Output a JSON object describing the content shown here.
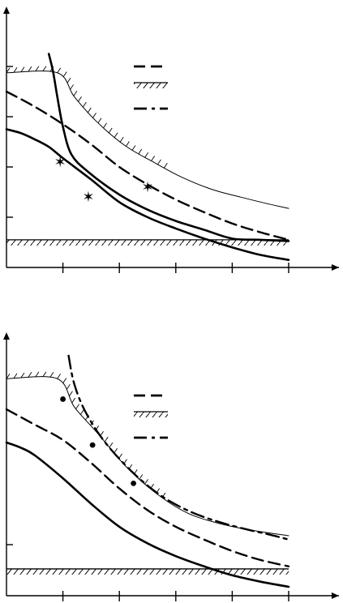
{
  "colors": {
    "ink": "#000000",
    "background": "#ffffff"
  },
  "chart_data": [
    {
      "type": "line",
      "panel": "top",
      "xlim": [
        0,
        10
      ],
      "ylim": [
        0,
        10
      ],
      "x_ticks": [
        2,
        4,
        6,
        8,
        10
      ],
      "y_ticks": [
        2,
        4,
        6,
        8
      ],
      "grid": false,
      "legend_position": "top-right",
      "legend_entries": [
        {
          "style": "dashed",
          "label": ""
        },
        {
          "style": "hatched",
          "label": ""
        },
        {
          "style": "dash-dot",
          "label": ""
        }
      ],
      "series": [
        {
          "style": "solid-thin",
          "points": [
            [
              0,
              7.75
            ],
            [
              1.8,
              7.75
            ],
            [
              2.4,
              6.8
            ],
            [
              3.2,
              5.8
            ],
            [
              4.2,
              4.85
            ],
            [
              5.2,
              4.2
            ],
            [
              6.2,
              3.6
            ],
            [
              7.3,
              3.1
            ],
            [
              8.3,
              2.8
            ],
            [
              9.2,
              2.55
            ],
            [
              10,
              2.35
            ]
          ]
        },
        {
          "style": "solid-thick",
          "points": [
            [
              1.5,
              8.5
            ],
            [
              1.65,
              7.8
            ],
            [
              1.8,
              6.8
            ],
            [
              2.0,
              5.6
            ],
            [
              2.3,
              4.5
            ],
            [
              2.9,
              3.8
            ],
            [
              4.0,
              2.9
            ],
            [
              5.0,
              2.3
            ],
            [
              6.0,
              1.85
            ],
            [
              7.0,
              1.5
            ],
            [
              8.0,
              1.15
            ],
            [
              9.0,
              1.1
            ],
            [
              10,
              1.05
            ]
          ]
        },
        {
          "style": "dashed",
          "points": [
            [
              0,
              7.0
            ],
            [
              1.0,
              6.4
            ],
            [
              2.0,
              5.7
            ],
            [
              3.0,
              4.9
            ],
            [
              4.0,
              4.0
            ],
            [
              5.0,
              3.3
            ],
            [
              6.0,
              2.7
            ],
            [
              7.0,
              2.2
            ],
            [
              8.0,
              1.75
            ],
            [
              9.0,
              1.4
            ],
            [
              10,
              1.1
            ]
          ]
        },
        {
          "style": "solid-thick",
          "points": [
            [
              0,
              5.5
            ],
            [
              0.5,
              5.35
            ],
            [
              1.0,
              5.1
            ],
            [
              1.5,
              4.8
            ],
            [
              2.0,
              4.35
            ],
            [
              3.0,
              3.5
            ],
            [
              4.0,
              2.6
            ],
            [
              5.0,
              2.0
            ],
            [
              6.0,
              1.55
            ],
            [
              7.0,
              1.15
            ],
            [
              8.0,
              0.8
            ],
            [
              9.0,
              0.5
            ],
            [
              10,
              0.3
            ]
          ]
        },
        {
          "style": "hatched-line",
          "points": [
            [
              0,
              1.1
            ],
            [
              10,
              1.1
            ]
          ]
        }
      ],
      "markers": [
        {
          "shape": "star",
          "x": 1.9,
          "y": 4.2
        },
        {
          "shape": "star",
          "x": 2.9,
          "y": 2.8
        },
        {
          "shape": "star",
          "x": 5.0,
          "y": 3.2
        }
      ]
    },
    {
      "type": "line",
      "panel": "bottom",
      "xlim": [
        0,
        10
      ],
      "ylim": [
        0,
        10
      ],
      "x_ticks": [
        2,
        4,
        6,
        8,
        10
      ],
      "y_ticks": [
        2
      ],
      "grid": false,
      "legend_position": "top-right",
      "legend_entries": [
        {
          "style": "dashed",
          "label": ""
        },
        {
          "style": "hatched",
          "label": ""
        },
        {
          "style": "dash-dot",
          "label": ""
        }
      ],
      "series": [
        {
          "style": "solid-thin",
          "points": [
            [
              0,
              8.5
            ],
            [
              1.8,
              8.5
            ],
            [
              2.4,
              7.4
            ],
            [
              3.2,
              6.4
            ],
            [
              4.2,
              5.1
            ],
            [
              5.2,
              4.1
            ],
            [
              6.3,
              3.3
            ],
            [
              7.3,
              2.9
            ],
            [
              8.5,
              2.6
            ],
            [
              10,
              2.35
            ]
          ]
        },
        {
          "style": "dash-dot",
          "points": [
            [
              2.2,
              9.4
            ],
            [
              2.4,
              8.3
            ],
            [
              2.8,
              7.2
            ],
            [
              3.5,
              6.0
            ],
            [
              4.5,
              4.8
            ],
            [
              5.5,
              3.9
            ],
            [
              6.5,
              3.3
            ],
            [
              7.5,
              2.9
            ],
            [
              8.5,
              2.6
            ],
            [
              9.3,
              2.4
            ],
            [
              10,
              2.2
            ]
          ]
        },
        {
          "style": "dashed",
          "points": [
            [
              0,
              7.3
            ],
            [
              1.0,
              6.7
            ],
            [
              2.0,
              6.1
            ],
            [
              3.0,
              5.2
            ],
            [
              4.0,
              4.2
            ],
            [
              5.0,
              3.35
            ],
            [
              6.0,
              2.7
            ],
            [
              7.0,
              2.2
            ],
            [
              8.0,
              1.75
            ],
            [
              9.0,
              1.4
            ],
            [
              10,
              1.15
            ]
          ]
        },
        {
          "style": "solid-thick",
          "points": [
            [
              0,
              6.0
            ],
            [
              0.5,
              5.8
            ],
            [
              1.0,
              5.5
            ],
            [
              2.0,
              4.6
            ],
            [
              3.0,
              3.6
            ],
            [
              4.0,
              2.7
            ],
            [
              5.0,
              2.05
            ],
            [
              6.0,
              1.55
            ],
            [
              7.0,
              1.15
            ],
            [
              8.0,
              0.8
            ],
            [
              9.0,
              0.55
            ],
            [
              10,
              0.35
            ]
          ]
        },
        {
          "style": "hatched-line",
          "points": [
            [
              0,
              1.05
            ],
            [
              10,
              1.05
            ]
          ]
        }
      ],
      "markers": [
        {
          "shape": "dot",
          "x": 2.0,
          "y": 7.7
        },
        {
          "shape": "dot",
          "x": 3.05,
          "y": 5.9
        },
        {
          "shape": "dot",
          "x": 4.5,
          "y": 4.4
        }
      ]
    }
  ]
}
